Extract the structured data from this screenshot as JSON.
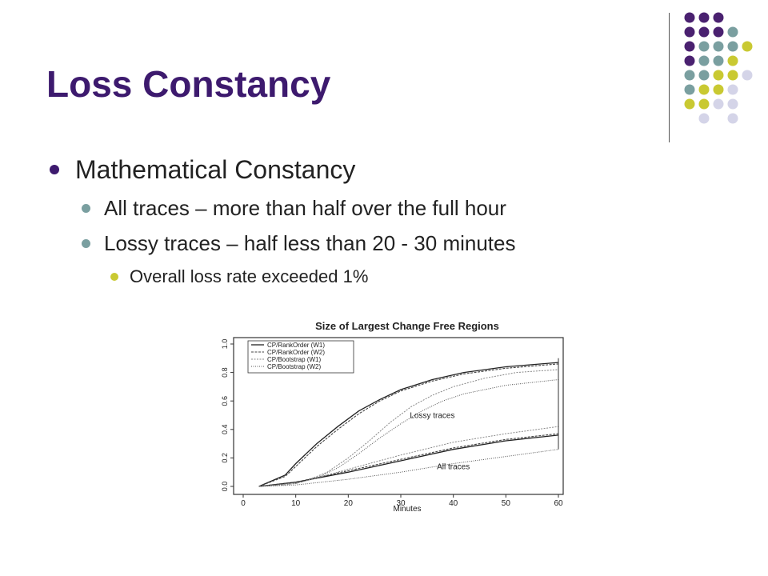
{
  "slide": {
    "title": "Loss Constancy",
    "bullets": [
      {
        "level": 1,
        "text": "Mathematical Constancy"
      },
      {
        "level": 2,
        "text": "All traces – more than half over the full hour"
      },
      {
        "level": 2,
        "text": "Lossy traces – half less than 20 - 30 minutes"
      },
      {
        "level": 3,
        "text": "Overall loss rate exceeded 1%"
      }
    ],
    "colors": {
      "title": "#3d1a6e",
      "purple": "#4a2170",
      "teal": "#7a9fa0",
      "yellow": "#c9c932",
      "lavender": "#d4d4e8"
    }
  },
  "chart_data": {
    "type": "line",
    "title": "Size of Largest Change Free Regions",
    "xlabel": "Minutes",
    "ylabel": "",
    "xlim": [
      0,
      60
    ],
    "ylim": [
      0,
      1.0
    ],
    "xticks": [
      "0",
      "10",
      "20",
      "30",
      "40",
      "50",
      "60"
    ],
    "yticks": [
      "0.0",
      "0.2",
      "0.4",
      "0.6",
      "0.8",
      "1.0"
    ],
    "legend_position": "top-left",
    "legend": [
      "CP/RankOrder (W1)",
      "CP/RankOrder (W2)",
      "CP/Bootstrap (W1)",
      "CP/Bootstrap (W2)"
    ],
    "annotations": [
      {
        "text": "Lossy traces",
        "x": 36,
        "y": 0.48
      },
      {
        "text": "All traces",
        "x": 40,
        "y": 0.12
      }
    ],
    "series": [
      {
        "name": "CP/RankOrder (W1)",
        "group": "Lossy traces",
        "x": [
          3,
          8,
          10,
          14,
          18,
          22,
          26,
          30,
          36,
          42,
          50,
          60
        ],
        "y": [
          0.0,
          0.08,
          0.16,
          0.3,
          0.42,
          0.53,
          0.61,
          0.68,
          0.75,
          0.8,
          0.84,
          0.87
        ]
      },
      {
        "name": "CP/RankOrder (W2)",
        "group": "Lossy traces",
        "x": [
          3,
          8,
          10,
          14,
          18,
          22,
          26,
          30,
          36,
          42,
          50,
          60
        ],
        "y": [
          0.0,
          0.07,
          0.14,
          0.28,
          0.4,
          0.51,
          0.6,
          0.67,
          0.74,
          0.79,
          0.83,
          0.86
        ]
      },
      {
        "name": "CP/Bootstrap (W1)",
        "group": "Lossy traces",
        "x": [
          3,
          8,
          12,
          16,
          20,
          24,
          28,
          32,
          36,
          40,
          46,
          52,
          60
        ],
        "y": [
          0.0,
          0.01,
          0.04,
          0.1,
          0.2,
          0.32,
          0.45,
          0.56,
          0.64,
          0.7,
          0.76,
          0.8,
          0.82
        ]
      },
      {
        "name": "CP/Bootstrap (W2)",
        "group": "Lossy traces",
        "x": [
          3,
          10,
          14,
          18,
          22,
          26,
          30,
          34,
          38,
          42,
          50,
          60
        ],
        "y": [
          0.0,
          0.02,
          0.06,
          0.13,
          0.23,
          0.34,
          0.44,
          0.53,
          0.6,
          0.65,
          0.71,
          0.75
        ]
      },
      {
        "name": "CP/RankOrder (W1)",
        "group": "All traces",
        "x": [
          3,
          10,
          20,
          30,
          40,
          50,
          60
        ],
        "y": [
          0.0,
          0.03,
          0.1,
          0.18,
          0.26,
          0.32,
          0.36
        ]
      },
      {
        "name": "CP/RankOrder (W2)",
        "group": "All traces",
        "x": [
          3,
          10,
          20,
          30,
          40,
          50,
          60
        ],
        "y": [
          0.0,
          0.03,
          0.11,
          0.19,
          0.27,
          0.33,
          0.37
        ]
      },
      {
        "name": "CP/Bootstrap (W1)",
        "group": "All traces",
        "x": [
          3,
          10,
          20,
          30,
          40,
          50,
          60
        ],
        "y": [
          0.0,
          0.02,
          0.12,
          0.22,
          0.31,
          0.37,
          0.42
        ]
      },
      {
        "name": "CP/Bootstrap (W2)",
        "group": "All traces",
        "x": [
          3,
          10,
          20,
          30,
          40,
          50,
          60
        ],
        "y": [
          0.0,
          0.01,
          0.05,
          0.1,
          0.16,
          0.21,
          0.26
        ]
      }
    ]
  }
}
